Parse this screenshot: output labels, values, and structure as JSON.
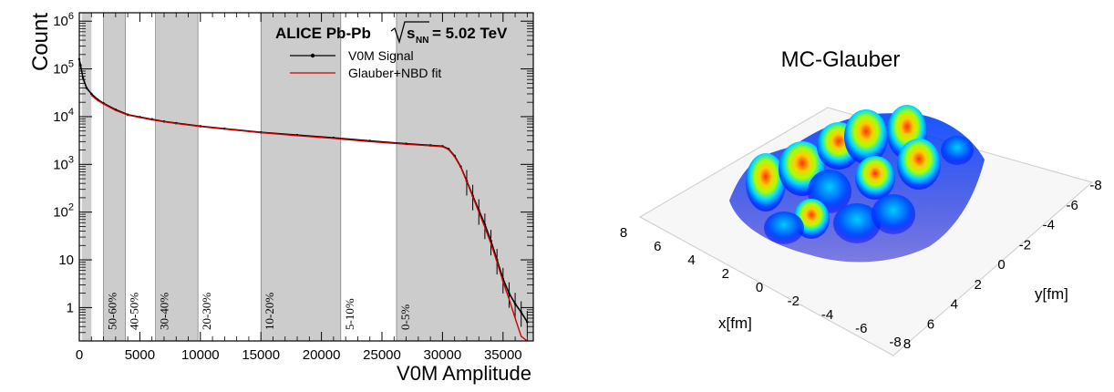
{
  "chart_data": [
    {
      "type": "line",
      "title": "ALICE Pb-Pb",
      "energy_label": "= 5.02 TeV",
      "xlabel": "V0M Amplitude",
      "ylabel": "Count",
      "xlim": [
        0,
        37500
      ],
      "ylim": [
        0.2,
        1500000
      ],
      "yscale": "log",
      "x_ticks": [
        0,
        5000,
        10000,
        15000,
        20000,
        25000,
        30000,
        35000
      ],
      "x_tick_labels": [
        "0",
        "5000",
        "10000",
        "15000",
        "20000",
        "25000",
        "30000",
        "35000"
      ],
      "y_ticks": [
        1,
        10,
        100,
        1000,
        10000,
        100000,
        1000000
      ],
      "y_tick_labels": [
        {
          "base": "1",
          "exp": ""
        },
        {
          "base": "10",
          "exp": ""
        },
        {
          "base": "10",
          "exp": "2"
        },
        {
          "base": "10",
          "exp": "3"
        },
        {
          "base": "10",
          "exp": "4"
        },
        {
          "base": "10",
          "exp": "5"
        },
        {
          "base": "10",
          "exp": "6"
        }
      ],
      "legend": [
        {
          "name": "V0M Signal",
          "color": "#000000",
          "marker": "dot"
        },
        {
          "name": "Glauber+NBD fit",
          "color": "#cc0000",
          "marker": "line"
        }
      ],
      "series": [
        {
          "name": "V0M Signal",
          "color": "#000000",
          "x": [
            0,
            100,
            300,
            600,
            1000,
            1500,
            2000,
            3000,
            4000,
            5000,
            6000,
            7000,
            8000,
            10000,
            12000,
            15000,
            18000,
            21000,
            24000,
            27000,
            29000,
            30000,
            30500,
            31000,
            31500,
            32000,
            32500,
            33000,
            33500,
            34000,
            34500,
            35000,
            35500,
            36000,
            36500,
            37000
          ],
          "y": [
            160000,
            120000,
            65000,
            40000,
            30000,
            23000,
            19000,
            14000,
            11000,
            9800,
            8800,
            7900,
            7300,
            6300,
            5600,
            4700,
            4100,
            3600,
            3100,
            2700,
            2500,
            2400,
            2100,
            1500,
            900,
            450,
            220,
            110,
            55,
            25,
            10,
            4,
            2,
            1.2,
            0.8,
            0.5
          ]
        },
        {
          "name": "Glauber+NBD fit",
          "color": "#cc0000",
          "x": [
            1000,
            1500,
            2000,
            3000,
            4000,
            5000,
            6000,
            7000,
            8000,
            10000,
            12000,
            15000,
            18000,
            21000,
            24000,
            27000,
            29000,
            30000,
            30500,
            31000,
            31500,
            32000,
            32500,
            33000,
            33500,
            34000,
            34500,
            35000,
            35500,
            36000,
            36500,
            37000
          ],
          "y": [
            28000,
            22000,
            18500,
            13500,
            10800,
            9600,
            8600,
            7800,
            7200,
            6200,
            5500,
            4600,
            4000,
            3500,
            3000,
            2650,
            2450,
            2350,
            2050,
            1450,
            880,
            440,
            210,
            100,
            48,
            22,
            9,
            3.5,
            1.5,
            0.6,
            0.25,
            0.1
          ]
        }
      ],
      "centrality_classes": [
        {
          "label": "50-60%",
          "x0": 2000,
          "x1": 3800,
          "shaded": true
        },
        {
          "label": "40-50%",
          "x0": 3800,
          "x1": 6300,
          "shaded": false
        },
        {
          "label": "30-40%",
          "x0": 6300,
          "x1": 9800,
          "shaded": true
        },
        {
          "label": "20-30%",
          "x0": 9800,
          "x1": 15000,
          "shaded": false
        },
        {
          "label": "10-20%",
          "x0": 15000,
          "x1": 21600,
          "shaded": true
        },
        {
          "label": "5-10%",
          "x0": 21600,
          "x1": 26200,
          "shaded": false
        },
        {
          "label": "0-5%",
          "x0": 26200,
          "x1": 37500,
          "shaded": true
        }
      ],
      "peripheral_band": {
        "x0": 200,
        "x1": 1000
      },
      "colors": {
        "shade": "#cccccc",
        "fit": "#cc0000",
        "data": "#000000"
      }
    },
    {
      "type": "surface",
      "title": "MC-Glauber",
      "xlabel": "x[fm]",
      "ylabel": "y[fm]",
      "x_tick_labels": [
        "8",
        "6",
        "4",
        "2",
        "0",
        "-2",
        "-4",
        "-6",
        "-8"
      ],
      "y_tick_labels": [
        "-8",
        "-6",
        "-4",
        "-2",
        "0",
        "2",
        "4",
        "6",
        "8"
      ],
      "colormap": [
        "#0000ff",
        "#00aaff",
        "#00ffcc",
        "#aaff00",
        "#ffcc00",
        "#ff3300"
      ]
    }
  ]
}
